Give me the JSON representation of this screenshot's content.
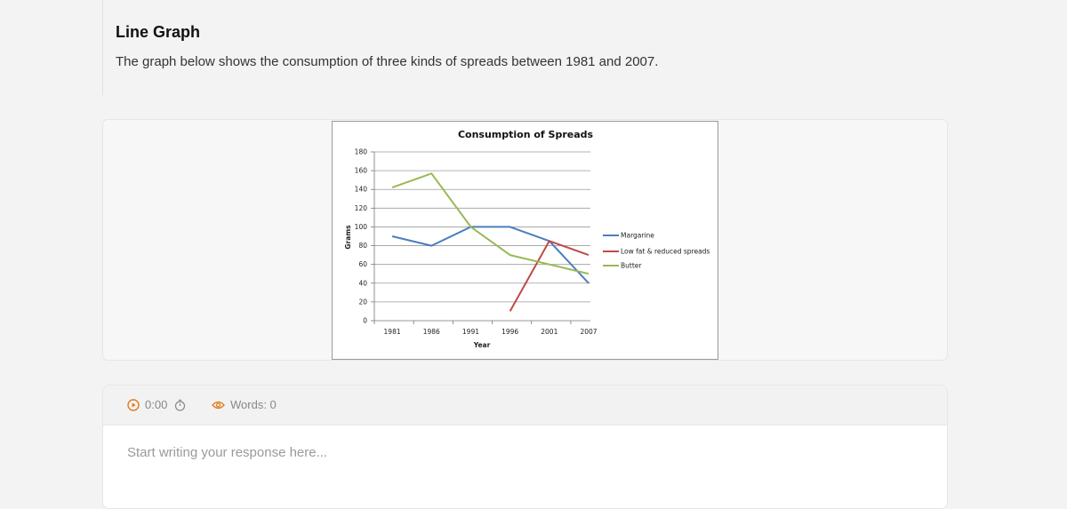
{
  "task": {
    "title": "Line Graph",
    "description": "The graph below shows the consumption of three kinds of spreads between 1981 and 2007."
  },
  "chart_data": {
    "type": "line",
    "title": "Consumption of Spreads",
    "xlabel": "Year",
    "ylabel": "Grams",
    "categories": [
      "1981",
      "1986",
      "1991",
      "1996",
      "2001",
      "2007"
    ],
    "ylim": [
      0,
      180
    ],
    "yticks": [
      0,
      20,
      40,
      60,
      80,
      100,
      120,
      140,
      160,
      180
    ],
    "grid": true,
    "legend_position": "right",
    "series": [
      {
        "name": "Margarine",
        "color": "#4a7ebb",
        "values": [
          90,
          80,
          100,
          100,
          85,
          40
        ]
      },
      {
        "name": "Low fat & reduced spreads",
        "color": "#be4b48",
        "values": [
          null,
          null,
          null,
          10,
          85,
          70
        ]
      },
      {
        "name": "Butter",
        "color": "#98b954",
        "values": [
          142,
          157,
          100,
          70,
          60,
          50
        ]
      }
    ]
  },
  "editor": {
    "timer": "0:00",
    "words_label": "Words: 0",
    "placeholder": "Start writing your response here...",
    "accent_color": "#e07b1a"
  }
}
